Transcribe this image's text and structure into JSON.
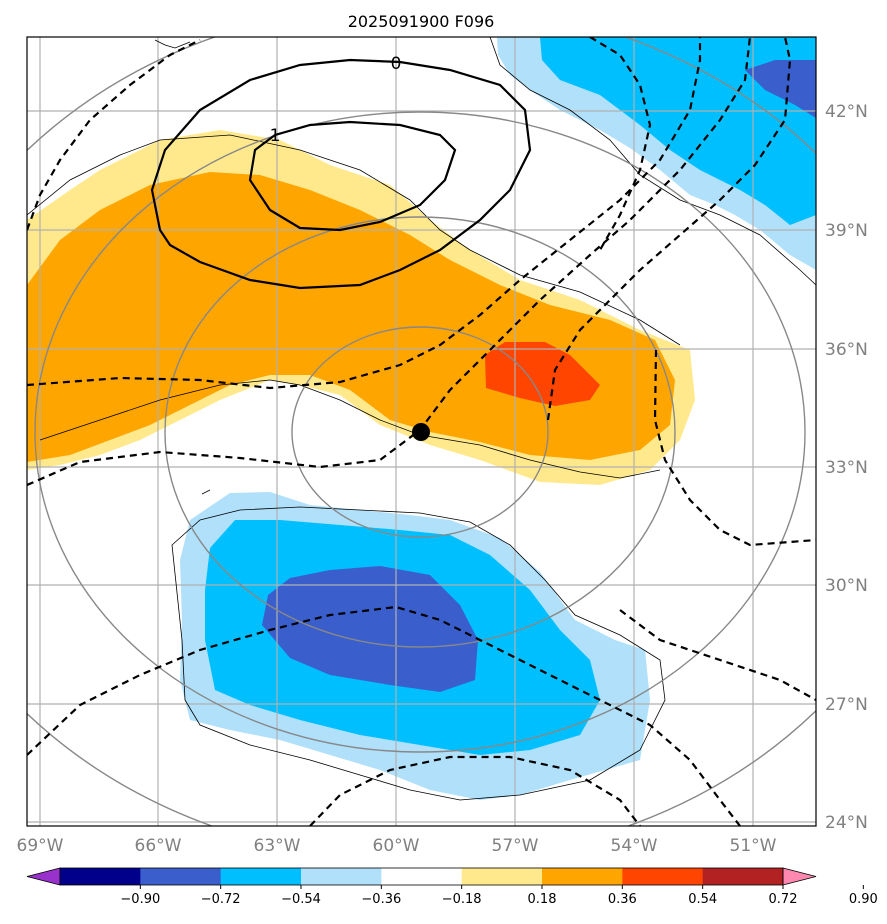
{
  "title": "2025091900 F096",
  "lon_labels": [
    "69°W",
    "66°W",
    "63°W",
    "60°W",
    "57°W",
    "54°W",
    "51°W"
  ],
  "lat_labels": [
    "42°N",
    "39°N",
    "36°N",
    "33°N",
    "30°N",
    "27°N",
    "24°N"
  ],
  "contour_labels": {
    "zero": "0",
    "one": "1"
  },
  "colorbar": {
    "ticks": [
      "−0.90",
      "−0.72",
      "−0.54",
      "−0.36",
      "−0.18",
      "0.18",
      "0.36",
      "0.54",
      "0.72",
      "0.90"
    ],
    "colors": [
      "#9932cc",
      "#00008b",
      "#3a5fcd",
      "#00bfff",
      "#b0e0fa",
      "#ffffff",
      "#ffe98c",
      "#ffa500",
      "#ff4500",
      "#b22222",
      "#ff88b0"
    ]
  },
  "colors": {
    "light_yellow": "#ffe98c",
    "orange": "#ffa500",
    "red_orange": "#ff4500",
    "light_blue": "#b0e0fa",
    "deep_sky_blue": "#00bfff",
    "royal_blue": "#3a5fcd"
  },
  "marker": {
    "lon": "59.7°W",
    "lat": "33.8°N"
  }
}
